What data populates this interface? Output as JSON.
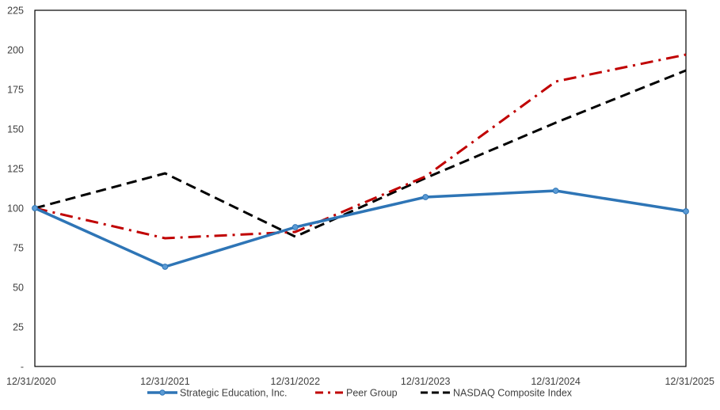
{
  "chart_data": {
    "type": "line",
    "title": "",
    "xlabel": "",
    "ylabel": "",
    "categories": [
      "12/31/2020",
      "12/31/2021",
      "12/31/2022",
      "12/31/2023",
      "12/31/2024",
      "12/31/2025"
    ],
    "yticks": [
      "-",
      "25",
      "50",
      "75",
      "100",
      "125",
      "150",
      "175",
      "200",
      "225"
    ],
    "ylim": [
      0,
      225
    ],
    "grid": false,
    "legend_position": "bottom",
    "series": [
      {
        "name": "Strategic Education, Inc.",
        "values": [
          100,
          63,
          88,
          107,
          111,
          98
        ],
        "color": "#2E75B6",
        "style": "solid-markers"
      },
      {
        "name": "Peer Group",
        "values": [
          100,
          81,
          85,
          120,
          180,
          197
        ],
        "color": "#C00000",
        "style": "dash-dot"
      },
      {
        "name": "NASDAQ Composite Index",
        "values": [
          100,
          122,
          82,
          119,
          154,
          187
        ],
        "color": "#000000",
        "style": "dashed"
      }
    ]
  }
}
